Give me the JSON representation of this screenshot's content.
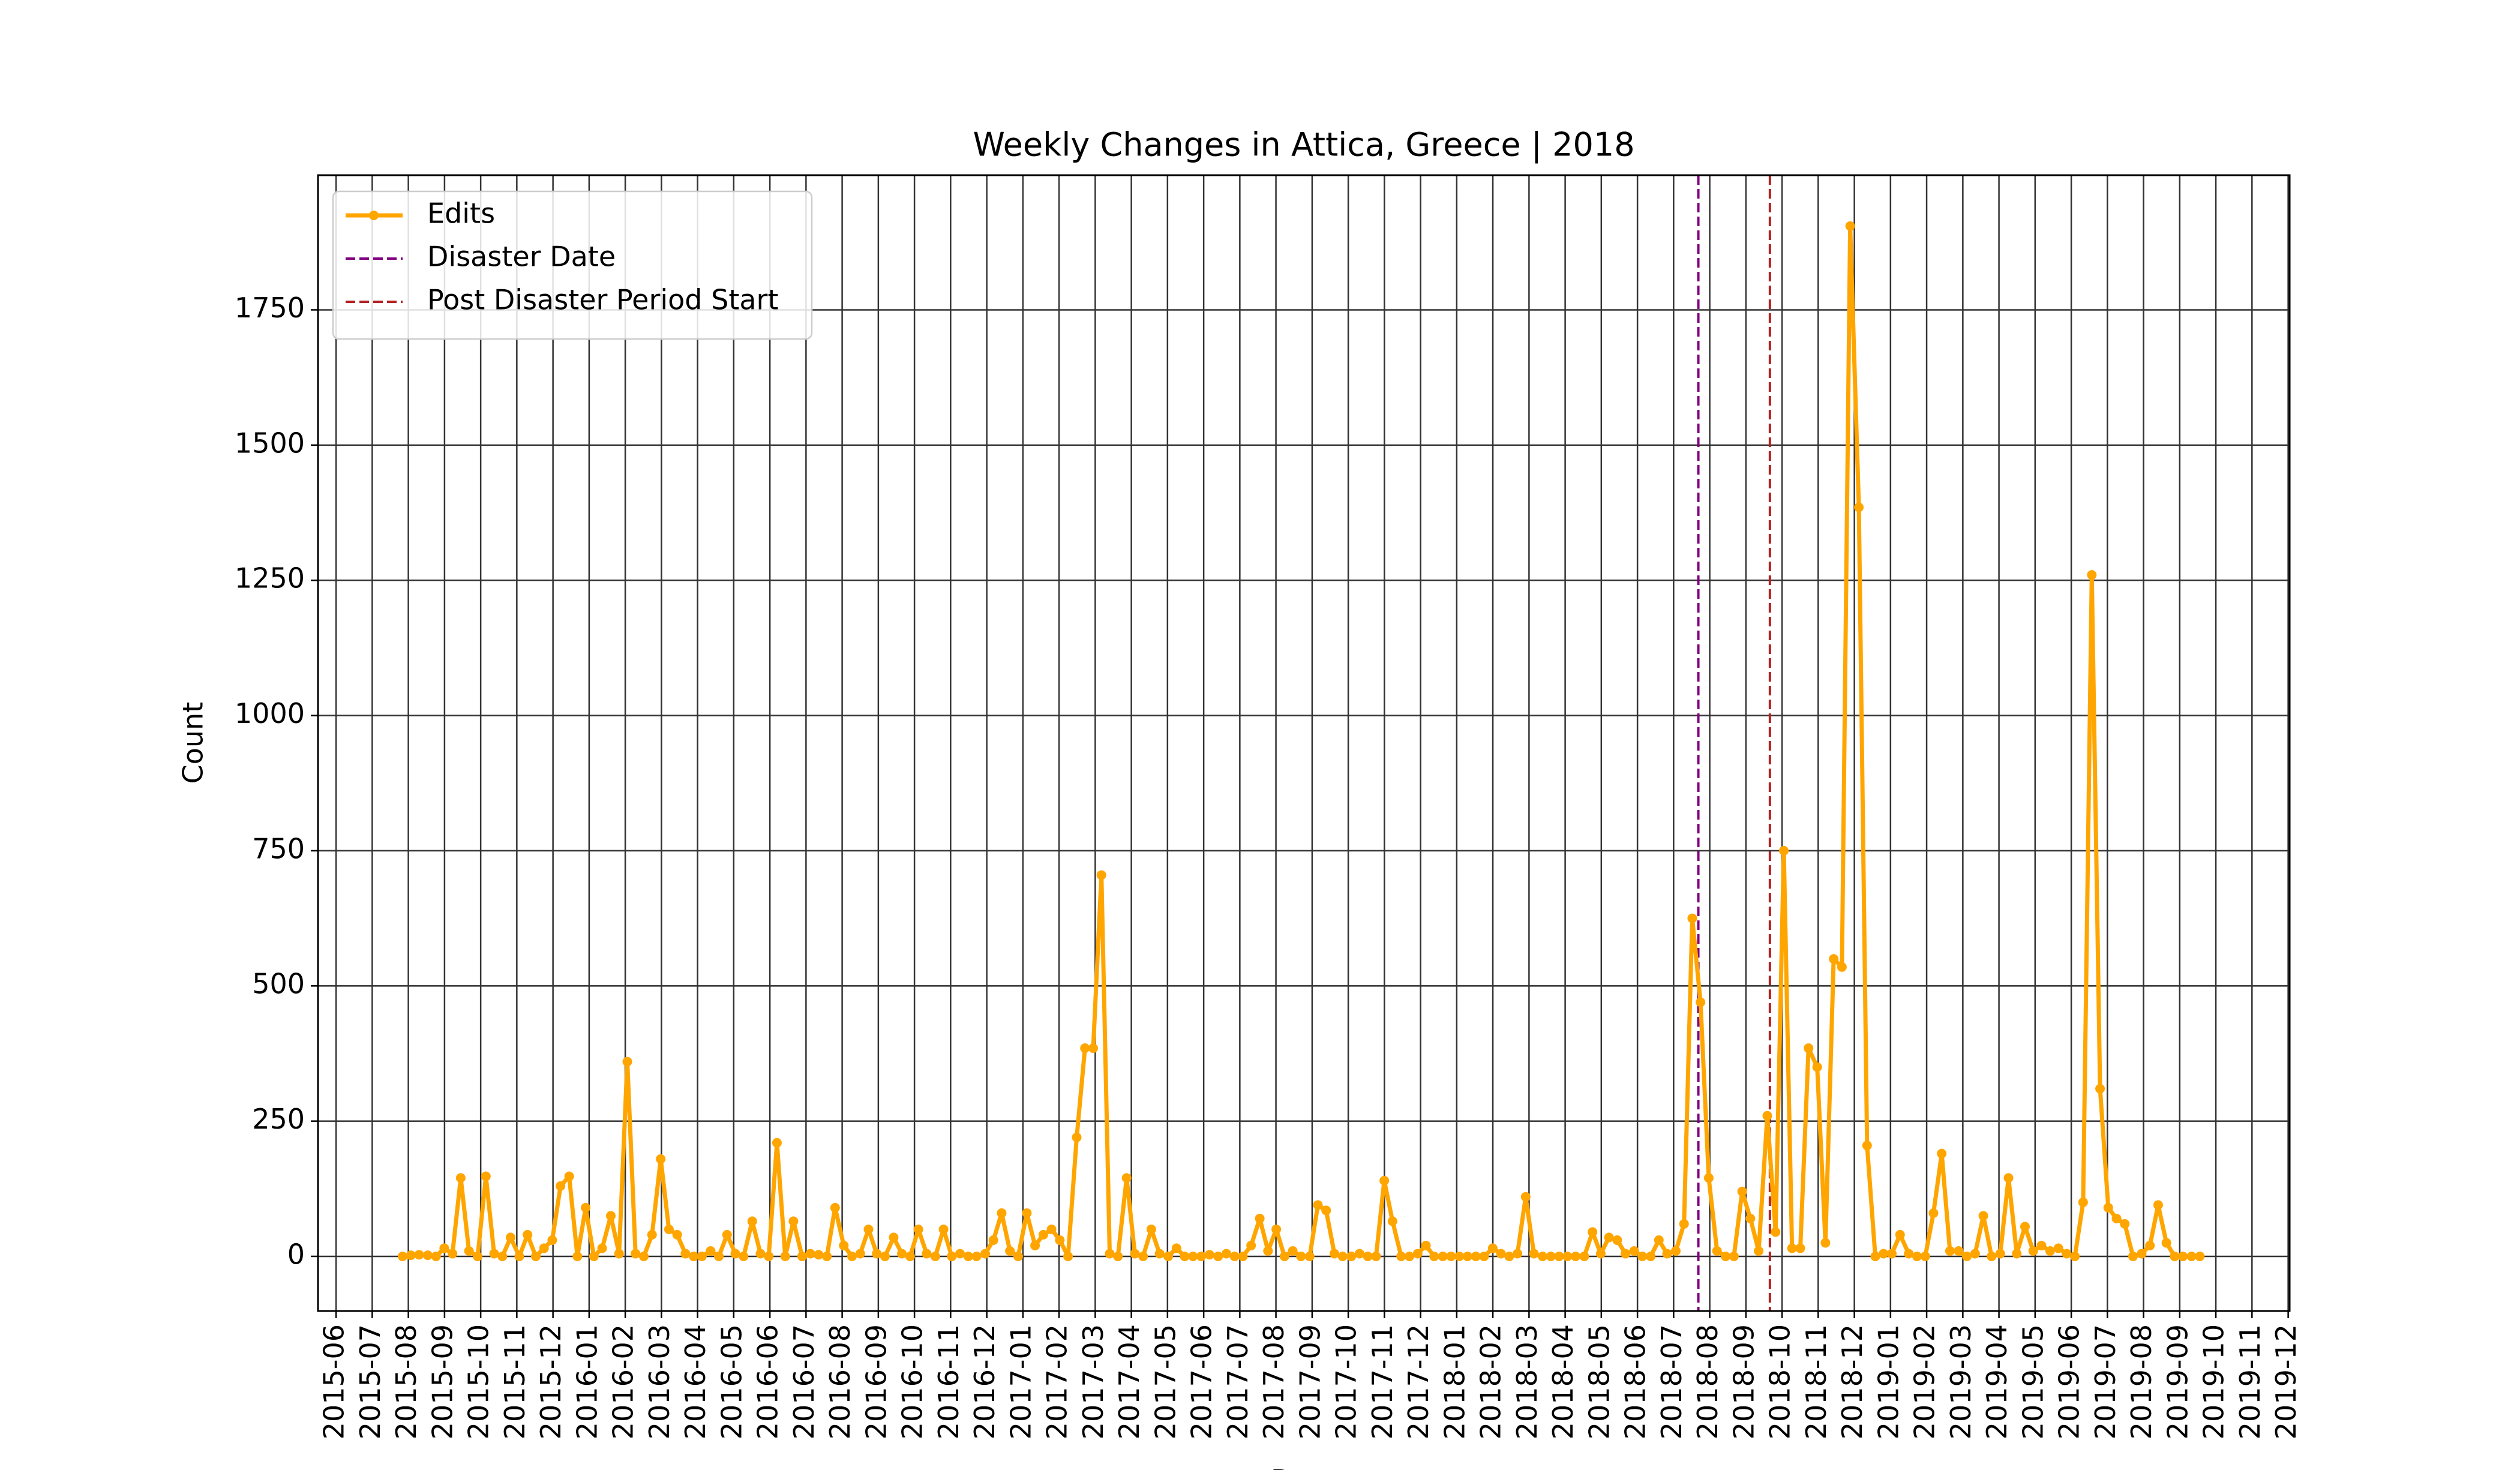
{
  "chart_data": {
    "type": "line",
    "title": "Weekly Changes in Attica, Greece | 2018",
    "xlabel": "Date",
    "ylabel": "Count",
    "grid": true,
    "legend": "upper left",
    "xlim": [
      2015.375,
      2019.92
    ],
    "ylim": [
      -101,
      1999
    ],
    "yticks": [
      0,
      250,
      500,
      750,
      1000,
      1250,
      1500,
      1750
    ],
    "xticks": [
      {
        "value": 2015.4167,
        "label": "2015-06"
      },
      {
        "value": 2015.5,
        "label": "2015-07"
      },
      {
        "value": 2015.5833,
        "label": "2015-08"
      },
      {
        "value": 2015.6667,
        "label": "2015-09"
      },
      {
        "value": 2015.75,
        "label": "2015-10"
      },
      {
        "value": 2015.8333,
        "label": "2015-11"
      },
      {
        "value": 2015.9167,
        "label": "2015-12"
      },
      {
        "value": 2016.0,
        "label": "2016-01"
      },
      {
        "value": 2016.0833,
        "label": "2016-02"
      },
      {
        "value": 2016.1667,
        "label": "2016-03"
      },
      {
        "value": 2016.25,
        "label": "2016-04"
      },
      {
        "value": 2016.3333,
        "label": "2016-05"
      },
      {
        "value": 2016.4167,
        "label": "2016-06"
      },
      {
        "value": 2016.5,
        "label": "2016-07"
      },
      {
        "value": 2016.5833,
        "label": "2016-08"
      },
      {
        "value": 2016.6667,
        "label": "2016-09"
      },
      {
        "value": 2016.75,
        "label": "2016-10"
      },
      {
        "value": 2016.8333,
        "label": "2016-11"
      },
      {
        "value": 2016.9167,
        "label": "2016-12"
      },
      {
        "value": 2017.0,
        "label": "2017-01"
      },
      {
        "value": 2017.0833,
        "label": "2017-02"
      },
      {
        "value": 2017.1667,
        "label": "2017-03"
      },
      {
        "value": 2017.25,
        "label": "2017-04"
      },
      {
        "value": 2017.3333,
        "label": "2017-05"
      },
      {
        "value": 2017.4167,
        "label": "2017-06"
      },
      {
        "value": 2017.5,
        "label": "2017-07"
      },
      {
        "value": 2017.5833,
        "label": "2017-08"
      },
      {
        "value": 2017.6667,
        "label": "2017-09"
      },
      {
        "value": 2017.75,
        "label": "2017-10"
      },
      {
        "value": 2017.8333,
        "label": "2017-11"
      },
      {
        "value": 2017.9167,
        "label": "2017-12"
      },
      {
        "value": 2018.0,
        "label": "2018-01"
      },
      {
        "value": 2018.0833,
        "label": "2018-02"
      },
      {
        "value": 2018.1667,
        "label": "2018-03"
      },
      {
        "value": 2018.25,
        "label": "2018-04"
      },
      {
        "value": 2018.3333,
        "label": "2018-05"
      },
      {
        "value": 2018.4167,
        "label": "2018-06"
      },
      {
        "value": 2018.5,
        "label": "2018-07"
      },
      {
        "value": 2018.5833,
        "label": "2018-08"
      },
      {
        "value": 2018.6667,
        "label": "2018-09"
      },
      {
        "value": 2018.75,
        "label": "2018-10"
      },
      {
        "value": 2018.8333,
        "label": "2018-11"
      },
      {
        "value": 2018.9167,
        "label": "2018-12"
      },
      {
        "value": 2019.0,
        "label": "2019-01"
      },
      {
        "value": 2019.0833,
        "label": "2019-02"
      },
      {
        "value": 2019.1667,
        "label": "2019-03"
      },
      {
        "value": 2019.25,
        "label": "2019-04"
      },
      {
        "value": 2019.3333,
        "label": "2019-05"
      },
      {
        "value": 2019.4167,
        "label": "2019-06"
      },
      {
        "value": 2019.5,
        "label": "2019-07"
      },
      {
        "value": 2019.5833,
        "label": "2019-08"
      },
      {
        "value": 2019.6667,
        "label": "2019-09"
      },
      {
        "value": 2019.75,
        "label": "2019-10"
      },
      {
        "value": 2019.8333,
        "label": "2019-11"
      },
      {
        "value": 2019.9167,
        "label": "2019-12"
      }
    ],
    "x": [
      2015.57,
      2015.589,
      2015.608,
      2015.628,
      2015.647,
      2015.666,
      2015.685,
      2015.704,
      2015.723,
      2015.743,
      2015.762,
      2015.781,
      2015.8,
      2015.819,
      2015.839,
      2015.858,
      2015.877,
      2015.896,
      2015.915,
      2015.934,
      2015.954,
      2015.973,
      2015.992,
      2016.011,
      2016.03,
      2016.05,
      2016.069,
      2016.088,
      2016.107,
      2016.126,
      2016.145,
      2016.165,
      2016.184,
      2016.203,
      2016.222,
      2016.241,
      2016.26,
      2016.28,
      2016.299,
      2016.318,
      2016.337,
      2016.356,
      2016.376,
      2016.395,
      2016.414,
      2016.433,
      2016.452,
      2016.471,
      2016.491,
      2016.51,
      2016.529,
      2016.548,
      2016.567,
      2016.587,
      2016.606,
      2016.625,
      2016.644,
      2016.663,
      2016.682,
      2016.702,
      2016.721,
      2016.74,
      2016.759,
      2016.778,
      2016.798,
      2016.817,
      2016.836,
      2016.855,
      2016.874,
      2016.893,
      2016.913,
      2016.932,
      2016.951,
      2016.97,
      2016.989,
      2017.009,
      2017.028,
      2017.047,
      2017.066,
      2017.085,
      2017.104,
      2017.124,
      2017.143,
      2017.162,
      2017.181,
      2017.2,
      2017.219,
      2017.239,
      2017.258,
      2017.277,
      2017.296,
      2017.315,
      2017.335,
      2017.354,
      2017.373,
      2017.392,
      2017.411,
      2017.43,
      2017.45,
      2017.469,
      2017.488,
      2017.507,
      2017.526,
      2017.546,
      2017.565,
      2017.584,
      2017.603,
      2017.622,
      2017.641,
      2017.661,
      2017.68,
      2017.699,
      2017.718,
      2017.737,
      2017.757,
      2017.776,
      2017.795,
      2017.814,
      2017.833,
      2017.852,
      2017.872,
      2017.891,
      2017.91,
      2017.929,
      2017.948,
      2017.968,
      2017.987,
      2018.006,
      2018.025,
      2018.044,
      2018.063,
      2018.083,
      2018.102,
      2018.121,
      2018.14,
      2018.159,
      2018.178,
      2018.198,
      2018.217,
      2018.236,
      2018.255,
      2018.274,
      2018.294,
      2018.313,
      2018.332,
      2018.351,
      2018.37,
      2018.389,
      2018.409,
      2018.428,
      2018.447,
      2018.466,
      2018.485,
      2018.505,
      2018.524,
      2018.543,
      2018.562,
      2018.581,
      2018.6,
      2018.62,
      2018.639,
      2018.658,
      2018.677,
      2018.696,
      2018.716,
      2018.735,
      2018.754,
      2018.773,
      2018.792,
      2018.811,
      2018.831,
      2018.85,
      2018.869,
      2018.888,
      2018.907,
      2018.927,
      2018.946,
      2018.965,
      2018.984,
      2019.003,
      2019.022,
      2019.042,
      2019.061,
      2019.08,
      2019.099,
      2019.118,
      2019.137,
      2019.157,
      2019.176,
      2019.195,
      2019.214,
      2019.233,
      2019.253,
      2019.272,
      2019.291,
      2019.31,
      2019.329,
      2019.348,
      2019.368,
      2019.387,
      2019.406,
      2019.425,
      2019.444,
      2019.464,
      2019.483,
      2019.502,
      2019.521,
      2019.54,
      2019.559,
      2019.579,
      2019.598,
      2019.617,
      2019.636,
      2019.655,
      2019.674,
      2019.694,
      2019.713
    ],
    "series": [
      {
        "name": "Edits",
        "color": "#ffa500",
        "values": [
          0,
          2,
          3,
          2,
          0,
          15,
          5,
          145,
          10,
          0,
          148,
          5,
          0,
          35,
          0,
          40,
          0,
          15,
          30,
          130,
          148,
          0,
          90,
          0,
          15,
          75,
          5,
          360,
          5,
          0,
          40,
          180,
          50,
          40,
          5,
          0,
          0,
          10,
          0,
          40,
          5,
          0,
          65,
          5,
          0,
          210,
          0,
          65,
          0,
          5,
          3,
          0,
          90,
          20,
          0,
          5,
          50,
          5,
          0,
          35,
          5,
          0,
          50,
          5,
          0,
          50,
          0,
          5,
          0,
          0,
          5,
          30,
          80,
          10,
          0,
          80,
          20,
          40,
          50,
          30,
          0,
          220,
          385,
          385,
          705,
          5,
          0,
          145,
          5,
          0,
          50,
          5,
          0,
          15,
          0,
          0,
          0,
          3,
          0,
          5,
          0,
          0,
          20,
          70,
          10,
          50,
          0,
          10,
          0,
          0,
          95,
          85,
          5,
          0,
          0,
          5,
          0,
          0,
          140,
          65,
          0,
          0,
          5,
          20,
          0,
          0,
          0,
          0,
          0,
          0,
          0,
          15,
          5,
          0,
          5,
          110,
          5,
          0,
          0,
          0,
          0,
          0,
          0,
          45,
          5,
          35,
          30,
          5,
          10,
          0,
          0,
          30,
          5,
          10,
          60,
          625,
          470,
          145,
          10,
          0,
          0,
          120,
          70,
          10,
          260,
          45,
          750,
          15,
          15,
          385,
          350,
          25,
          550,
          535,
          1905,
          1385,
          205,
          0,
          5,
          5,
          40,
          5,
          0,
          0,
          80,
          190,
          10,
          10,
          0,
          5,
          75,
          0,
          5,
          145,
          5,
          55,
          10,
          20,
          10,
          15,
          5,
          0,
          100,
          1260,
          310,
          90,
          70,
          60,
          0,
          5,
          20,
          95,
          25,
          0,
          0,
          0,
          0
        ]
      }
    ],
    "vlines": [
      {
        "name": "Disaster Date",
        "x": 2018.557,
        "color": "#800080"
      },
      {
        "name": "Post Disaster Period Start",
        "x": 2018.722,
        "color": "#b22222"
      }
    ]
  }
}
